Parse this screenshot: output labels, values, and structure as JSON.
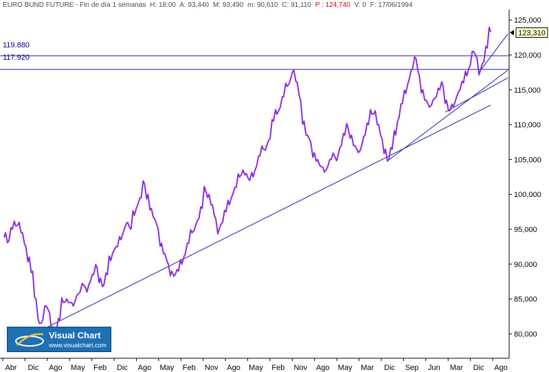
{
  "header": {
    "title": "EURO BUND FUTURE - Fin de día 1 semanas",
    "items": [
      {
        "label": "H: 18:00",
        "color": "#4a4a4a"
      },
      {
        "label": "A: 93,440",
        "color": "#4a4a4a"
      },
      {
        "label": "M: 93,490",
        "color": "#4a4a4a"
      },
      {
        "label": "m: 90,610",
        "color": "#4a4a4a"
      },
      {
        "label": "C: 91,110",
        "color": "#4a4a4a"
      },
      {
        "label": "P : 124,740",
        "color": "#e00000"
      },
      {
        "label": "V: 0",
        "color": "#4a4a4a"
      },
      {
        "label": "F: 17/06/1994",
        "color": "#4a4a4a"
      }
    ]
  },
  "levels": [
    {
      "label": "119.880",
      "value": 119.88
    },
    {
      "label": "117.920",
      "value": 117.92
    }
  ],
  "logo": {
    "title": "Visual Chart",
    "url": "www.visualchart.com"
  },
  "colors": {
    "price": "#8a2be2",
    "lines": "#1a1aa6",
    "axis": "#000000",
    "tag_bg": "#ffffcc"
  },
  "chart_data": {
    "type": "line",
    "ylim": [
      76.5,
      126.5
    ],
    "y_ticks": [
      "80,000",
      "85,000",
      "90,000",
      "95,000",
      "100,000",
      "105,000",
      "110,000",
      "115,000",
      "120,000",
      "125,000"
    ],
    "x_tick_labels": [
      "Abr",
      "Dic",
      "Ago",
      "May",
      "Feb",
      "Dic",
      "Ago",
      "May",
      "Feb",
      "Nov",
      "Ago",
      "May",
      "Feb",
      "Nov",
      "Ago",
      "May",
      "Mar",
      "Dic",
      "Sep",
      "Jun",
      "Mar",
      "Dic",
      "Ago"
    ],
    "last_value_label": "123,310",
    "series": [
      {
        "values": [
          94.5,
          93.3,
          95.0,
          95.5,
          96.0,
          94.5,
          92.5,
          91.0,
          89.0,
          85.0,
          81.5,
          82.0,
          84.0,
          83.0,
          81.0,
          80.5,
          82.0,
          84.5,
          85.0,
          84.5,
          84.0,
          85.5,
          86.0,
          87.0,
          86.0,
          87.5,
          88.5,
          89.5,
          88.0,
          87.0,
          88.5,
          90.5,
          92.0,
          92.5,
          93.5,
          95.0,
          96.0,
          95.0,
          97.0,
          98.5,
          99.5,
          101.5,
          100.0,
          98.0,
          96.5,
          95.0,
          93.0,
          91.5,
          90.0,
          89.0,
          88.5,
          89.0,
          90.0,
          91.5,
          93.0,
          94.5,
          95.5,
          96.5,
          98.0,
          100.5,
          100.0,
          98.5,
          96.5,
          95.0,
          96.0,
          97.5,
          98.5,
          100.0,
          101.0,
          102.5,
          103.5,
          103.0,
          102.0,
          102.5,
          104.0,
          105.5,
          106.5,
          107.0,
          108.0,
          110.5,
          111.5,
          112.5,
          114.0,
          115.5,
          116.5,
          117.8,
          116.0,
          113.5,
          110.5,
          108.5,
          107.5,
          106.0,
          105.0,
          104.0,
          103.2,
          104.0,
          105.0,
          105.5,
          105.5,
          107.0,
          108.5,
          109.5,
          108.5,
          107.0,
          106.0,
          107.0,
          108.5,
          110.0,
          111.5,
          112.0,
          110.0,
          108.0,
          106.5,
          105.0,
          106.5,
          108.5,
          111.0,
          113.0,
          114.5,
          116.5,
          118.0,
          119.5,
          117.0,
          115.0,
          113.5,
          112.5,
          113.5,
          114.0,
          115.0,
          115.5,
          113.5,
          112.0,
          112.5,
          114.0,
          115.0,
          116.0,
          117.0,
          118.5,
          120.5,
          119.5,
          117.8,
          119.0,
          121.0,
          123.3
        ]
      }
    ]
  }
}
